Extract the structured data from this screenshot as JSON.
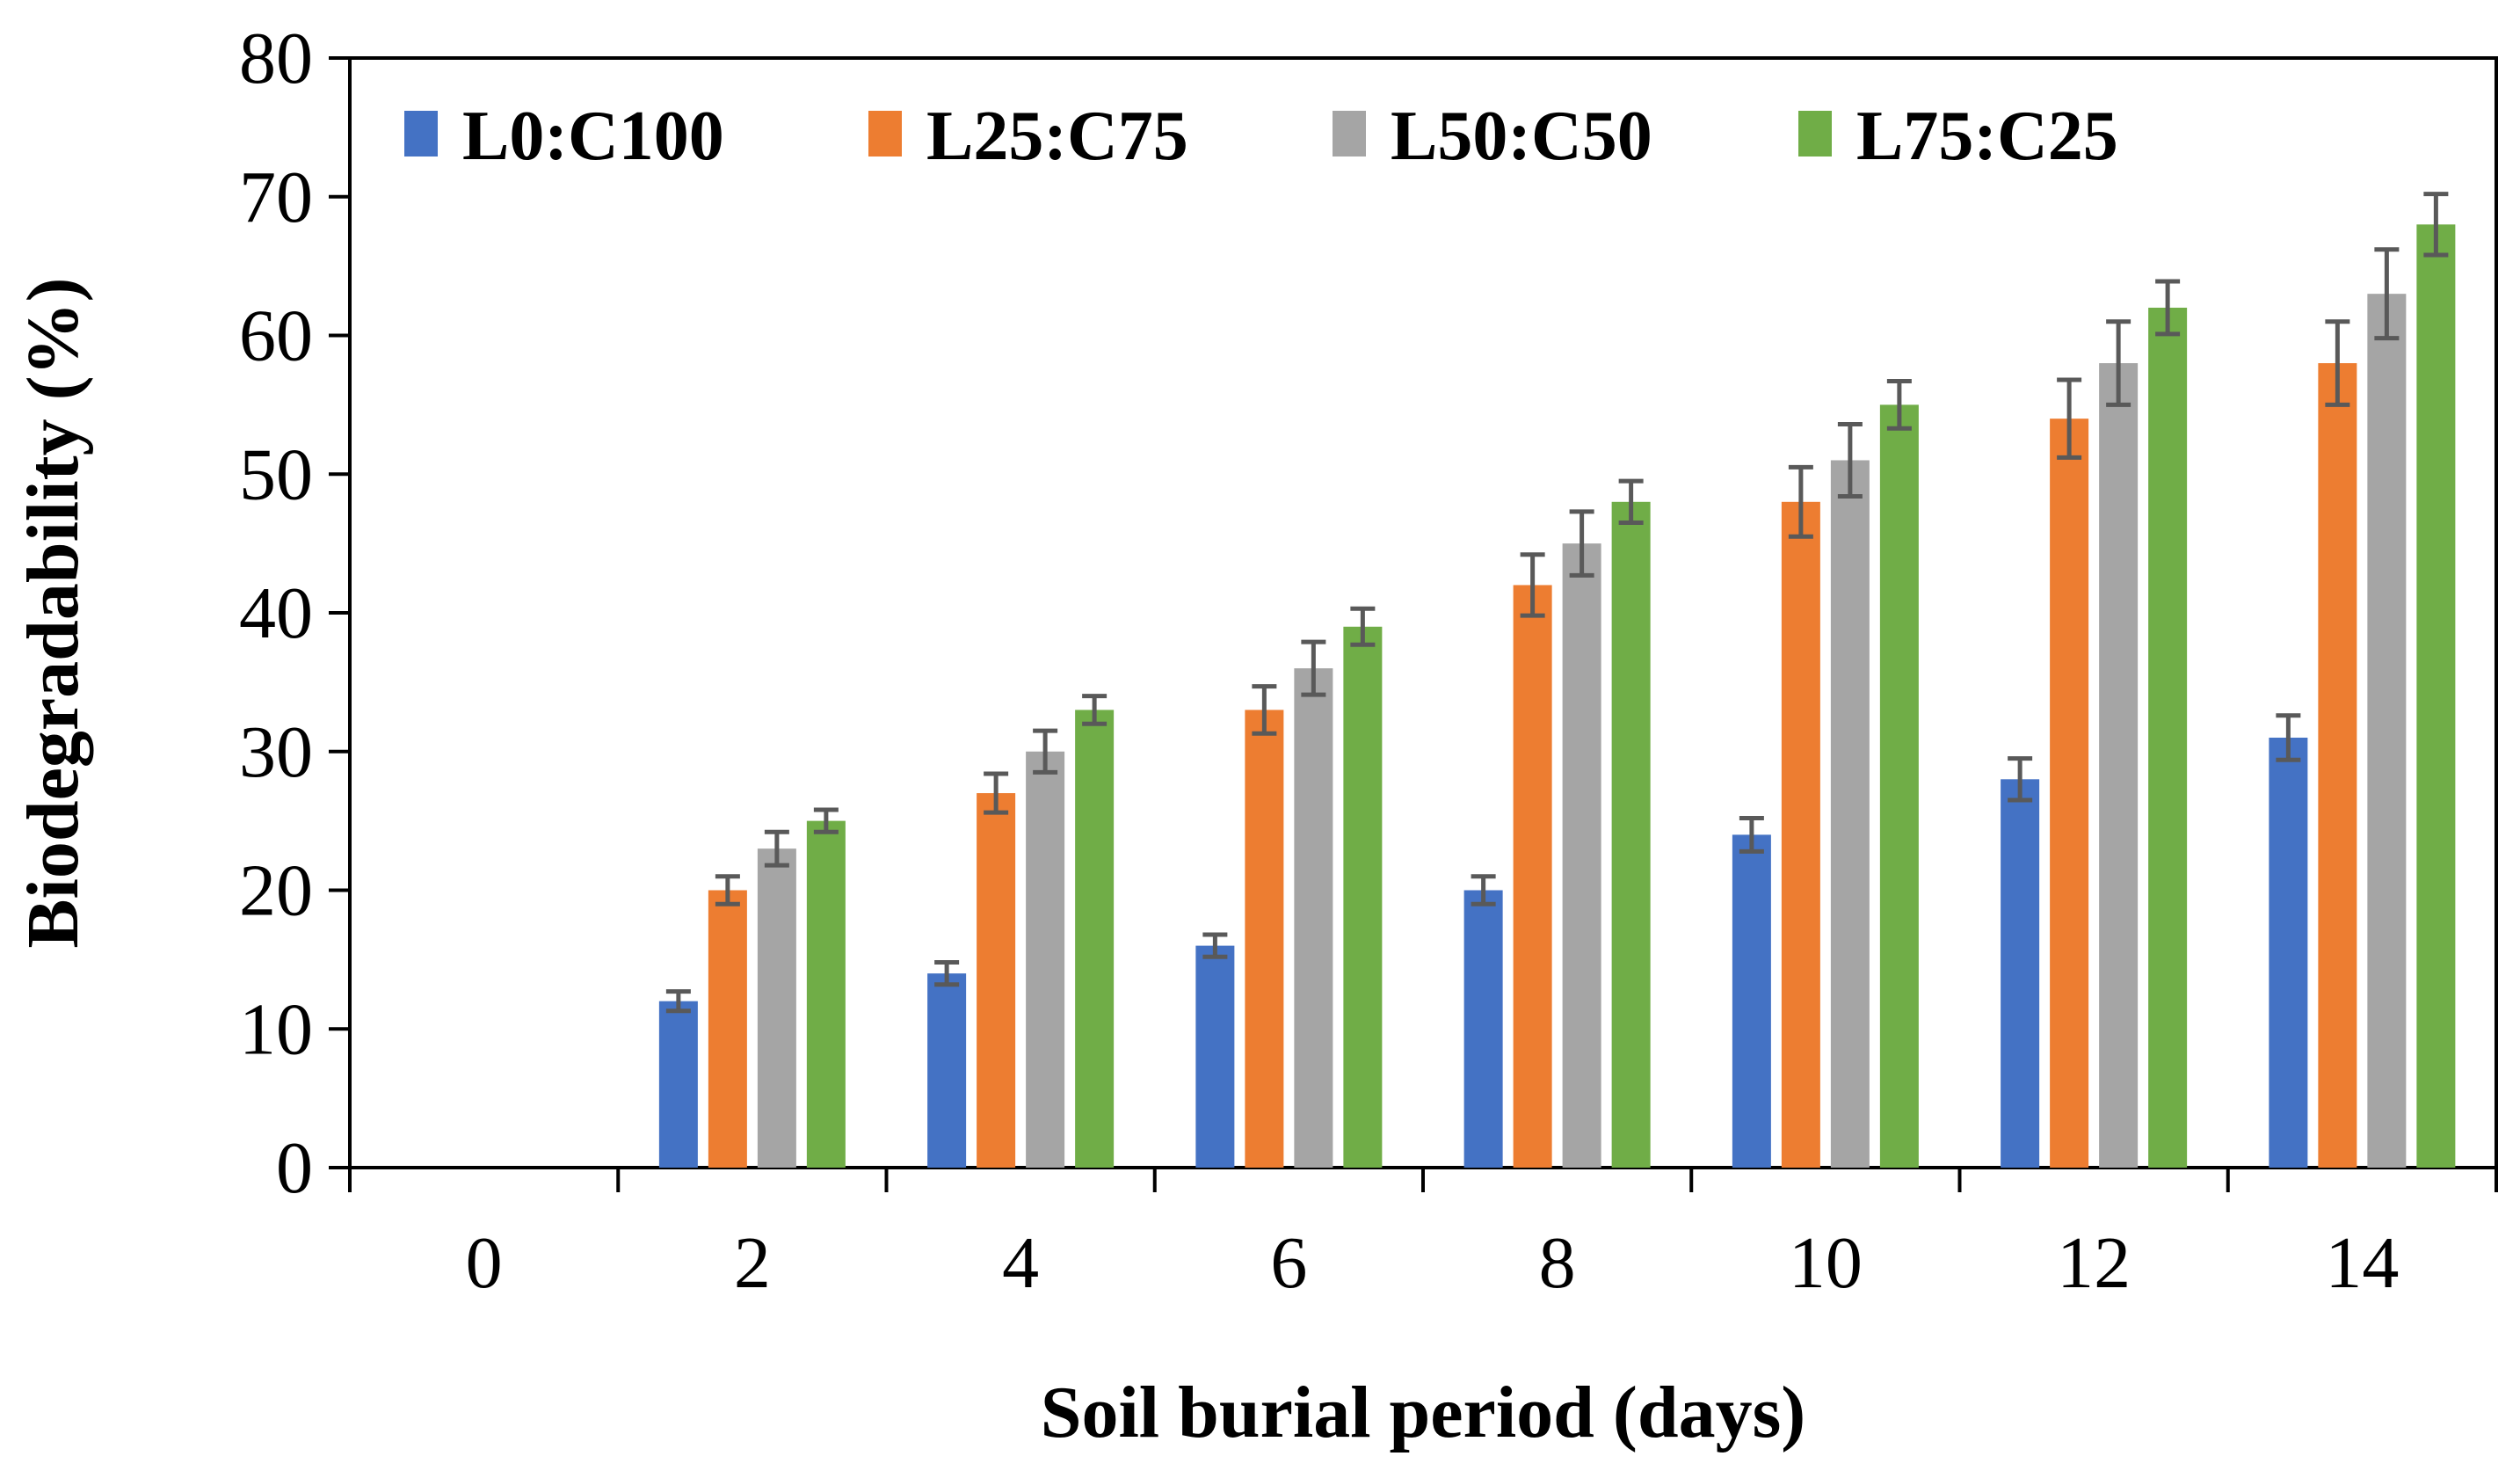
{
  "chart_data": {
    "type": "bar",
    "title": "",
    "xlabel": "Soil burial period (days)",
    "ylabel": "Biodegradability (%)",
    "categories": [
      "0",
      "2",
      "4",
      "6",
      "8",
      "10",
      "12",
      "14"
    ],
    "ylim": [
      0,
      80
    ],
    "yticks": [
      "0",
      "10",
      "20",
      "30",
      "40",
      "50",
      "60",
      "70",
      "80"
    ],
    "grid": false,
    "legend_position": "top",
    "series": [
      {
        "name": "L0:C100",
        "color": "#4472C4",
        "values": [
          0,
          12,
          14,
          16,
          20,
          24,
          28,
          31
        ],
        "errors": [
          0,
          0.7,
          0.8,
          0.8,
          1.0,
          1.2,
          1.5,
          1.6
        ]
      },
      {
        "name": "L25:C75",
        "color": "#ED7D31",
        "values": [
          0,
          20,
          27,
          33,
          42,
          48,
          54,
          58
        ],
        "errors": [
          0,
          1.0,
          1.4,
          1.7,
          2.2,
          2.5,
          2.8,
          3.0
        ]
      },
      {
        "name": "L50:C50",
        "color": "#A5A5A5",
        "values": [
          0,
          23,
          30,
          36,
          45,
          51,
          58,
          63
        ],
        "errors": [
          0,
          1.2,
          1.5,
          1.9,
          2.3,
          2.6,
          3.0,
          3.2
        ]
      },
      {
        "name": "L75:C25",
        "color": "#70AD47",
        "values": [
          0,
          25,
          33,
          39,
          48,
          55,
          62,
          68
        ],
        "errors": [
          0,
          0.8,
          1.0,
          1.3,
          1.5,
          1.7,
          1.9,
          2.2
        ]
      }
    ],
    "error_bar_color": "#595959"
  }
}
